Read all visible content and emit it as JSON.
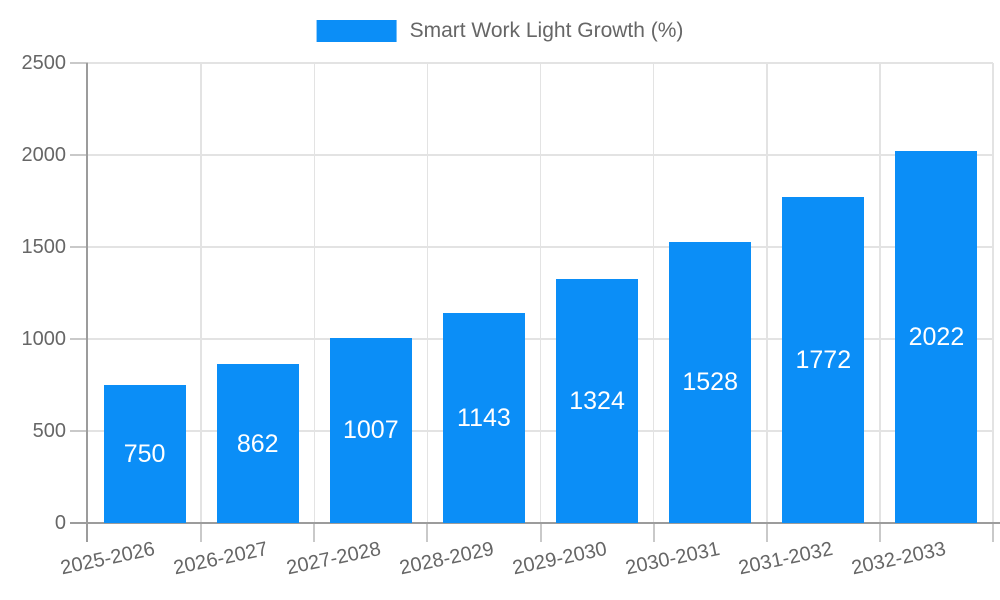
{
  "legend": {
    "label": "Smart Work Light Growth (%)"
  },
  "colors": {
    "bar": "#0b8ef7",
    "grid": "#e3e3e3",
    "tick": "#c9c9c9",
    "axis": "#9c9c9c",
    "label_text": "#666666",
    "bar_label_text": "#ffffff",
    "background": "#ffffff"
  },
  "chart_data": {
    "type": "bar",
    "title": "Smart Work Light Growth (%)",
    "categories": [
      "2025-2026",
      "2026-2027",
      "2027-2028",
      "2028-2029",
      "2029-2030",
      "2030-2031",
      "2031-2032",
      "2032-2033"
    ],
    "values": [
      750,
      862,
      1007,
      1143,
      1324,
      1528,
      1772,
      2022
    ],
    "series_name": "Smart Work Light Growth (%)",
    "xlabel": "",
    "ylabel": "",
    "ylim": [
      0,
      2500
    ],
    "yticks": [
      0,
      500,
      1000,
      1500,
      2000,
      2500
    ],
    "grid": true,
    "legend_position": "top-center",
    "value_label_position": "inside-center",
    "x_tick_rotation_deg": -12
  }
}
